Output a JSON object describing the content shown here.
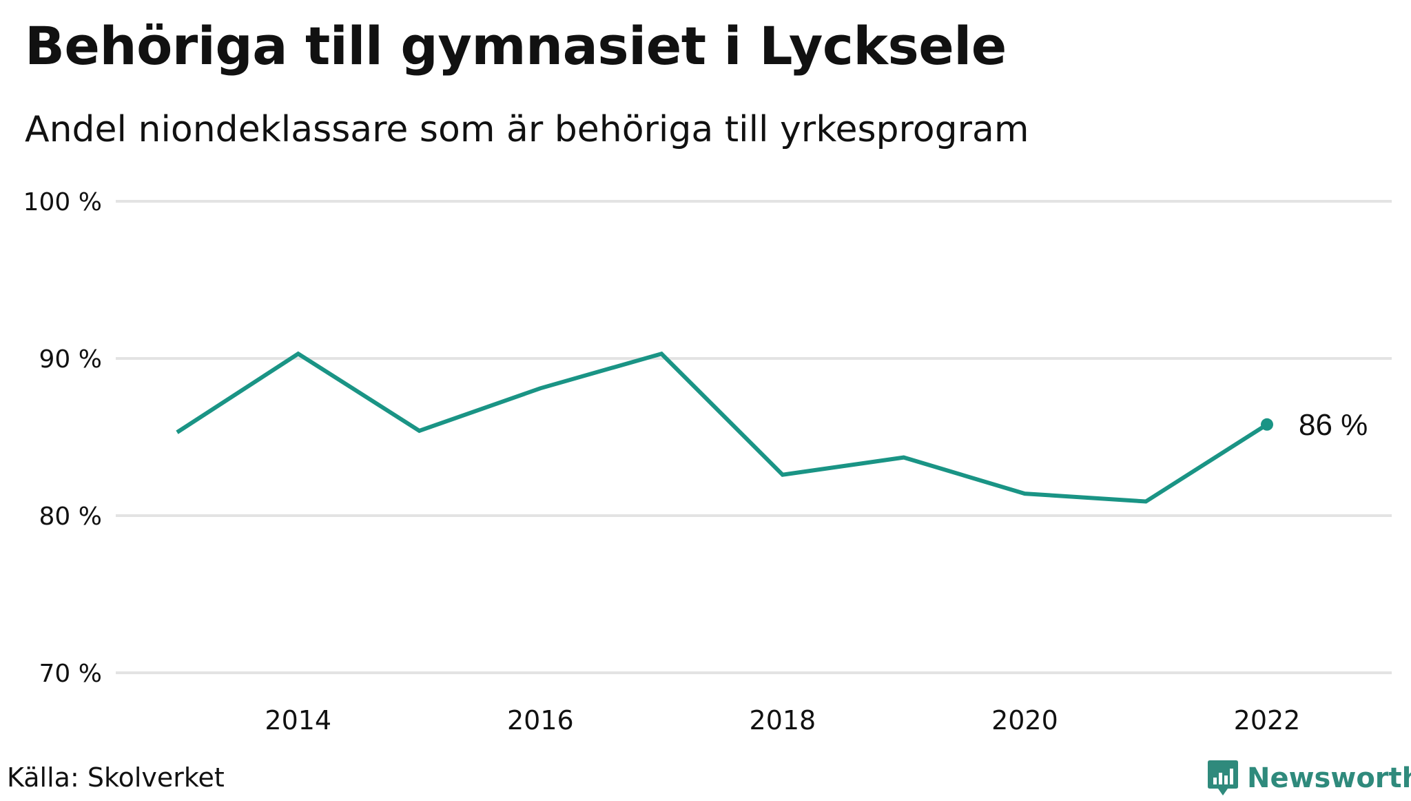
{
  "header": {
    "title": "Behöriga till gymnasiet i Lycksele",
    "subtitle": "Andel niondeklassare som är behöriga till yrkesprogram"
  },
  "footer": {
    "source": "Källa: Skolverket",
    "brand": "Newsworthy",
    "brand_icon": "bar-chart-speech-bubble-icon"
  },
  "colors": {
    "line": "#1a9485",
    "grid": "#e3e3e3",
    "brand": "#2f8a7c",
    "text": "#111111"
  },
  "chart_data": {
    "type": "line",
    "title": "Behöriga till gymnasiet i Lycksele",
    "subtitle": "Andel niondeklassare som är behöriga till yrkesprogram",
    "xlabel": "",
    "ylabel": "",
    "x": [
      2013,
      2014,
      2015,
      2016,
      2017,
      2018,
      2019,
      2020,
      2021,
      2022
    ],
    "series": [
      {
        "values": [
          85.3,
          90.3,
          85.4,
          88.1,
          90.3,
          82.6,
          83.7,
          81.4,
          80.9,
          85.8
        ]
      }
    ],
    "ylim": [
      70,
      100
    ],
    "y_ticks": [
      70,
      80,
      90,
      100
    ],
    "y_tick_labels": [
      "70 %",
      "80 %",
      "90 %",
      "100 %"
    ],
    "x_ticks": [
      2014,
      2016,
      2018,
      2020,
      2022
    ],
    "x_tick_labels": [
      "2014",
      "2016",
      "2018",
      "2020",
      "2022"
    ],
    "end_label": "86 %",
    "grid": true,
    "legend": "none"
  }
}
